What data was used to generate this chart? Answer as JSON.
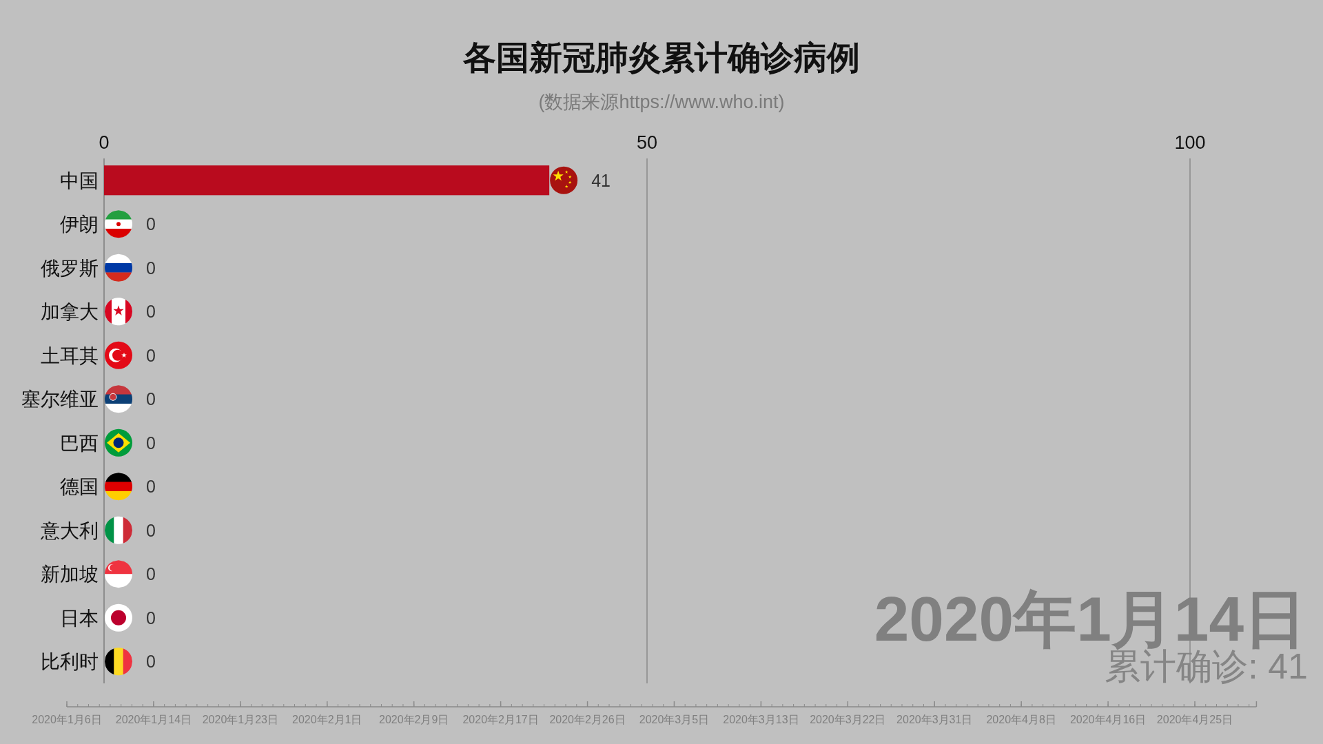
{
  "chart_data": {
    "type": "bar",
    "orientation": "horizontal",
    "title": "各国新冠肺炎累计确诊病例",
    "subtitle": "(数据来源https://www.who.int)",
    "categories": [
      "中国",
      "伊朗",
      "俄罗斯",
      "加拿大",
      "土耳其",
      "塞尔维亚",
      "巴西",
      "德国",
      "意大利",
      "新加坡",
      "日本",
      "比利时"
    ],
    "values": [
      41,
      0,
      0,
      0,
      0,
      0,
      0,
      0,
      0,
      0,
      0,
      0
    ],
    "color": "#b90b1e",
    "xlim": [
      0,
      100
    ],
    "xticks": [
      0,
      50,
      100
    ],
    "grid": "x",
    "data_labels": true,
    "annotations": [
      "2020年1月14日",
      "累计确诊: 41",
      "2020年1月6日",
      "2020年1月14日",
      "2020年1月23日",
      "2020年2月1日",
      "2020年2月9日",
      "2020年2月17日",
      "2020年2月26日",
      "2020年3月5日",
      "2020年3月13日",
      "2020年3月22日",
      "2020年3月31日",
      "2020年4月8日",
      "2020年4月16日",
      "2020年4月25日"
    ]
  }
}
